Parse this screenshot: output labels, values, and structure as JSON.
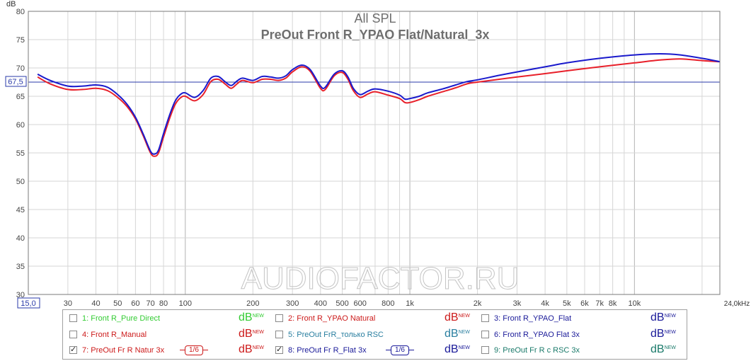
{
  "chart_data": {
    "type": "line",
    "title": "All SPL",
    "subtitle": "PreOut Front R_YPAO Flat/Natural_3x",
    "ylabel": "dB",
    "xunit": "Hz",
    "xscale": "log",
    "xlim": [
      20,
      24000
    ],
    "ylim": [
      30,
      80
    ],
    "yticks": [
      30,
      35,
      40,
      45,
      50,
      55,
      60,
      65,
      70,
      75,
      80
    ],
    "xticks": [
      {
        "v": 30,
        "label": "30"
      },
      {
        "v": 40,
        "label": "40"
      },
      {
        "v": 50,
        "label": "50"
      },
      {
        "v": 60,
        "label": "60"
      },
      {
        "v": 70,
        "label": "70"
      },
      {
        "v": 80,
        "label": "80"
      },
      {
        "v": 100,
        "label": "100"
      },
      {
        "v": 200,
        "label": "200"
      },
      {
        "v": 300,
        "label": "300"
      },
      {
        "v": 400,
        "label": "400"
      },
      {
        "v": 500,
        "label": "500"
      },
      {
        "v": 600,
        "label": "600"
      },
      {
        "v": 800,
        "label": "800"
      },
      {
        "v": 1000,
        "label": "1k"
      },
      {
        "v": 2000,
        "label": "2k"
      },
      {
        "v": 3000,
        "label": "3k"
      },
      {
        "v": 4000,
        "label": "4k"
      },
      {
        "v": 5000,
        "label": "5k"
      },
      {
        "v": 6000,
        "label": "6k"
      },
      {
        "v": 7000,
        "label": "7k"
      },
      {
        "v": 8000,
        "label": "8k"
      },
      {
        "v": 10000,
        "label": "10k"
      }
    ],
    "x_min_label": "15,0",
    "x_max_label": "24,0k",
    "reference_line": {
      "value": 67.5,
      "label": "67,5"
    },
    "watermark": "AUDIOFACTOR.RU",
    "grid": true,
    "series": [
      {
        "name": "7: PreOut Fr R Natur 3x",
        "color": "#e8202a",
        "points": [
          [
            22,
            68.4
          ],
          [
            25,
            67.2
          ],
          [
            30,
            66.2
          ],
          [
            35,
            66.2
          ],
          [
            40,
            66.4
          ],
          [
            45,
            66.0
          ],
          [
            50,
            64.8
          ],
          [
            55,
            63.2
          ],
          [
            60,
            61.0
          ],
          [
            65,
            58.0
          ],
          [
            70,
            55.0
          ],
          [
            73,
            54.4
          ],
          [
            76,
            55.0
          ],
          [
            80,
            57.8
          ],
          [
            85,
            61.0
          ],
          [
            90,
            63.5
          ],
          [
            95,
            64.7
          ],
          [
            100,
            65.0
          ],
          [
            110,
            64.2
          ],
          [
            120,
            65.3
          ],
          [
            130,
            67.6
          ],
          [
            140,
            68.0
          ],
          [
            150,
            67.2
          ],
          [
            160,
            66.4
          ],
          [
            170,
            67.2
          ],
          [
            180,
            67.8
          ],
          [
            200,
            67.4
          ],
          [
            220,
            68.0
          ],
          [
            240,
            68.0
          ],
          [
            260,
            67.8
          ],
          [
            280,
            68.2
          ],
          [
            300,
            69.3
          ],
          [
            330,
            70.2
          ],
          [
            360,
            69.4
          ],
          [
            400,
            66.4
          ],
          [
            420,
            66.2
          ],
          [
            460,
            68.6
          ],
          [
            500,
            69.2
          ],
          [
            530,
            68.0
          ],
          [
            560,
            66.0
          ],
          [
            600,
            64.8
          ],
          [
            650,
            65.4
          ],
          [
            700,
            65.8
          ],
          [
            800,
            65.2
          ],
          [
            900,
            64.6
          ],
          [
            950,
            63.9
          ],
          [
            1000,
            63.9
          ],
          [
            1100,
            64.4
          ],
          [
            1200,
            65.0
          ],
          [
            1400,
            65.8
          ],
          [
            1600,
            66.5
          ],
          [
            1800,
            67.2
          ],
          [
            2000,
            67.5
          ],
          [
            2500,
            68.0
          ],
          [
            3000,
            68.4
          ],
          [
            4000,
            69.0
          ],
          [
            5000,
            69.5
          ],
          [
            7000,
            70.2
          ],
          [
            10000,
            70.9
          ],
          [
            13000,
            71.4
          ],
          [
            16000,
            71.6
          ],
          [
            20000,
            71.3
          ],
          [
            24000,
            71.1
          ]
        ]
      },
      {
        "name": "8: PreOut Fr R_Flat 3x",
        "color": "#1a1acc",
        "points": [
          [
            22,
            68.9
          ],
          [
            25,
            67.8
          ],
          [
            30,
            66.8
          ],
          [
            35,
            66.8
          ],
          [
            40,
            67.0
          ],
          [
            45,
            66.6
          ],
          [
            50,
            65.3
          ],
          [
            55,
            63.6
          ],
          [
            60,
            61.3
          ],
          [
            65,
            58.3
          ],
          [
            70,
            55.3
          ],
          [
            73,
            54.8
          ],
          [
            76,
            55.5
          ],
          [
            80,
            58.4
          ],
          [
            85,
            61.6
          ],
          [
            90,
            64.1
          ],
          [
            95,
            65.3
          ],
          [
            100,
            65.6
          ],
          [
            110,
            64.8
          ],
          [
            120,
            66.0
          ],
          [
            130,
            68.2
          ],
          [
            140,
            68.5
          ],
          [
            150,
            67.6
          ],
          [
            160,
            66.9
          ],
          [
            170,
            67.7
          ],
          [
            180,
            68.2
          ],
          [
            200,
            67.8
          ],
          [
            220,
            68.5
          ],
          [
            240,
            68.4
          ],
          [
            260,
            68.2
          ],
          [
            280,
            68.6
          ],
          [
            300,
            69.7
          ],
          [
            330,
            70.5
          ],
          [
            360,
            69.7
          ],
          [
            400,
            66.8
          ],
          [
            420,
            66.6
          ],
          [
            460,
            68.9
          ],
          [
            500,
            69.5
          ],
          [
            530,
            68.4
          ],
          [
            560,
            66.4
          ],
          [
            600,
            65.3
          ],
          [
            650,
            65.9
          ],
          [
            700,
            66.3
          ],
          [
            800,
            65.9
          ],
          [
            900,
            65.2
          ],
          [
            950,
            64.5
          ],
          [
            1000,
            64.6
          ],
          [
            1100,
            65.0
          ],
          [
            1200,
            65.6
          ],
          [
            1400,
            66.3
          ],
          [
            1600,
            67.0
          ],
          [
            1800,
            67.6
          ],
          [
            2000,
            67.9
          ],
          [
            2500,
            68.7
          ],
          [
            3000,
            69.3
          ],
          [
            4000,
            70.2
          ],
          [
            5000,
            70.9
          ],
          [
            7000,
            71.7
          ],
          [
            10000,
            72.3
          ],
          [
            13000,
            72.5
          ],
          [
            16000,
            72.3
          ],
          [
            20000,
            71.7
          ],
          [
            24000,
            71.1
          ]
        ]
      }
    ]
  },
  "legend": {
    "unit_text": "dB",
    "unit_sup": "NEW",
    "items": [
      {
        "label": "1: Front R_Pure Direct",
        "color": "#33cc33",
        "checked": false,
        "checkmark": "",
        "smoothing": ""
      },
      {
        "label": "2: Front R_YPAO Natural",
        "color": "#cc1a1a",
        "checked": false,
        "checkmark": "",
        "smoothing": ""
      },
      {
        "label": "3: Front R_YPAO_Flat",
        "color": "#1a1a99",
        "checked": false,
        "checkmark": "",
        "smoothing": ""
      },
      {
        "label": "4: Front R_Manual",
        "color": "#cc1a1a",
        "checked": false,
        "checkmark": "",
        "smoothing": ""
      },
      {
        "label": "5: PreOut FrR_только RSC",
        "color": "#2a7fa0",
        "checked": false,
        "checkmark": "",
        "smoothing": ""
      },
      {
        "label": "6: Front R_YPAO Flat 3x",
        "color": "#1a1a99",
        "checked": false,
        "checkmark": "",
        "smoothing": ""
      },
      {
        "label": "7: PreOut Fr R Natur 3x",
        "color": "#cc1a1a",
        "checked": true,
        "checkmark": "✓",
        "smoothing": "1/6"
      },
      {
        "label": "8: PreOut Fr R_Flat 3x",
        "color": "#1a1a99",
        "checked": true,
        "checkmark": "✓",
        "smoothing": "1/6"
      },
      {
        "label": "9: PreOut Fr R c RSC 3x",
        "color": "#1a7a6a",
        "checked": false,
        "checkmark": "",
        "smoothing": ""
      }
    ],
    "unit_colors": [
      "#33cc33",
      "#cc1a1a",
      "#1a1a99",
      "#cc1a1a",
      "#2a7fa0",
      "#1a1a99",
      "#cc1a1a",
      "#1a1a99",
      "#1a7a6a"
    ]
  }
}
